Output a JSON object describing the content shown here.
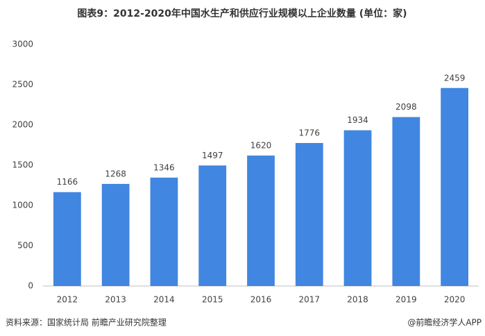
{
  "chart_data": {
    "type": "bar",
    "title": "图表9：2012-2020年中国水生产和供应行业规模以上企业数量 (单位：家)",
    "categories": [
      "2012",
      "2013",
      "2014",
      "2015",
      "2016",
      "2017",
      "2018",
      "2019",
      "2020"
    ],
    "values": [
      1166,
      1268,
      1346,
      1497,
      1620,
      1776,
      1934,
      2098,
      2459
    ],
    "color": "#4186e0",
    "ylim": [
      0,
      3000
    ],
    "yticks": [
      0,
      500,
      1000,
      1500,
      2000,
      2500,
      3000
    ],
    "grid": false,
    "source": "资料来源：国家统计局 前瞻产业研究院整理",
    "credit": "@前瞻经济学人APP"
  }
}
